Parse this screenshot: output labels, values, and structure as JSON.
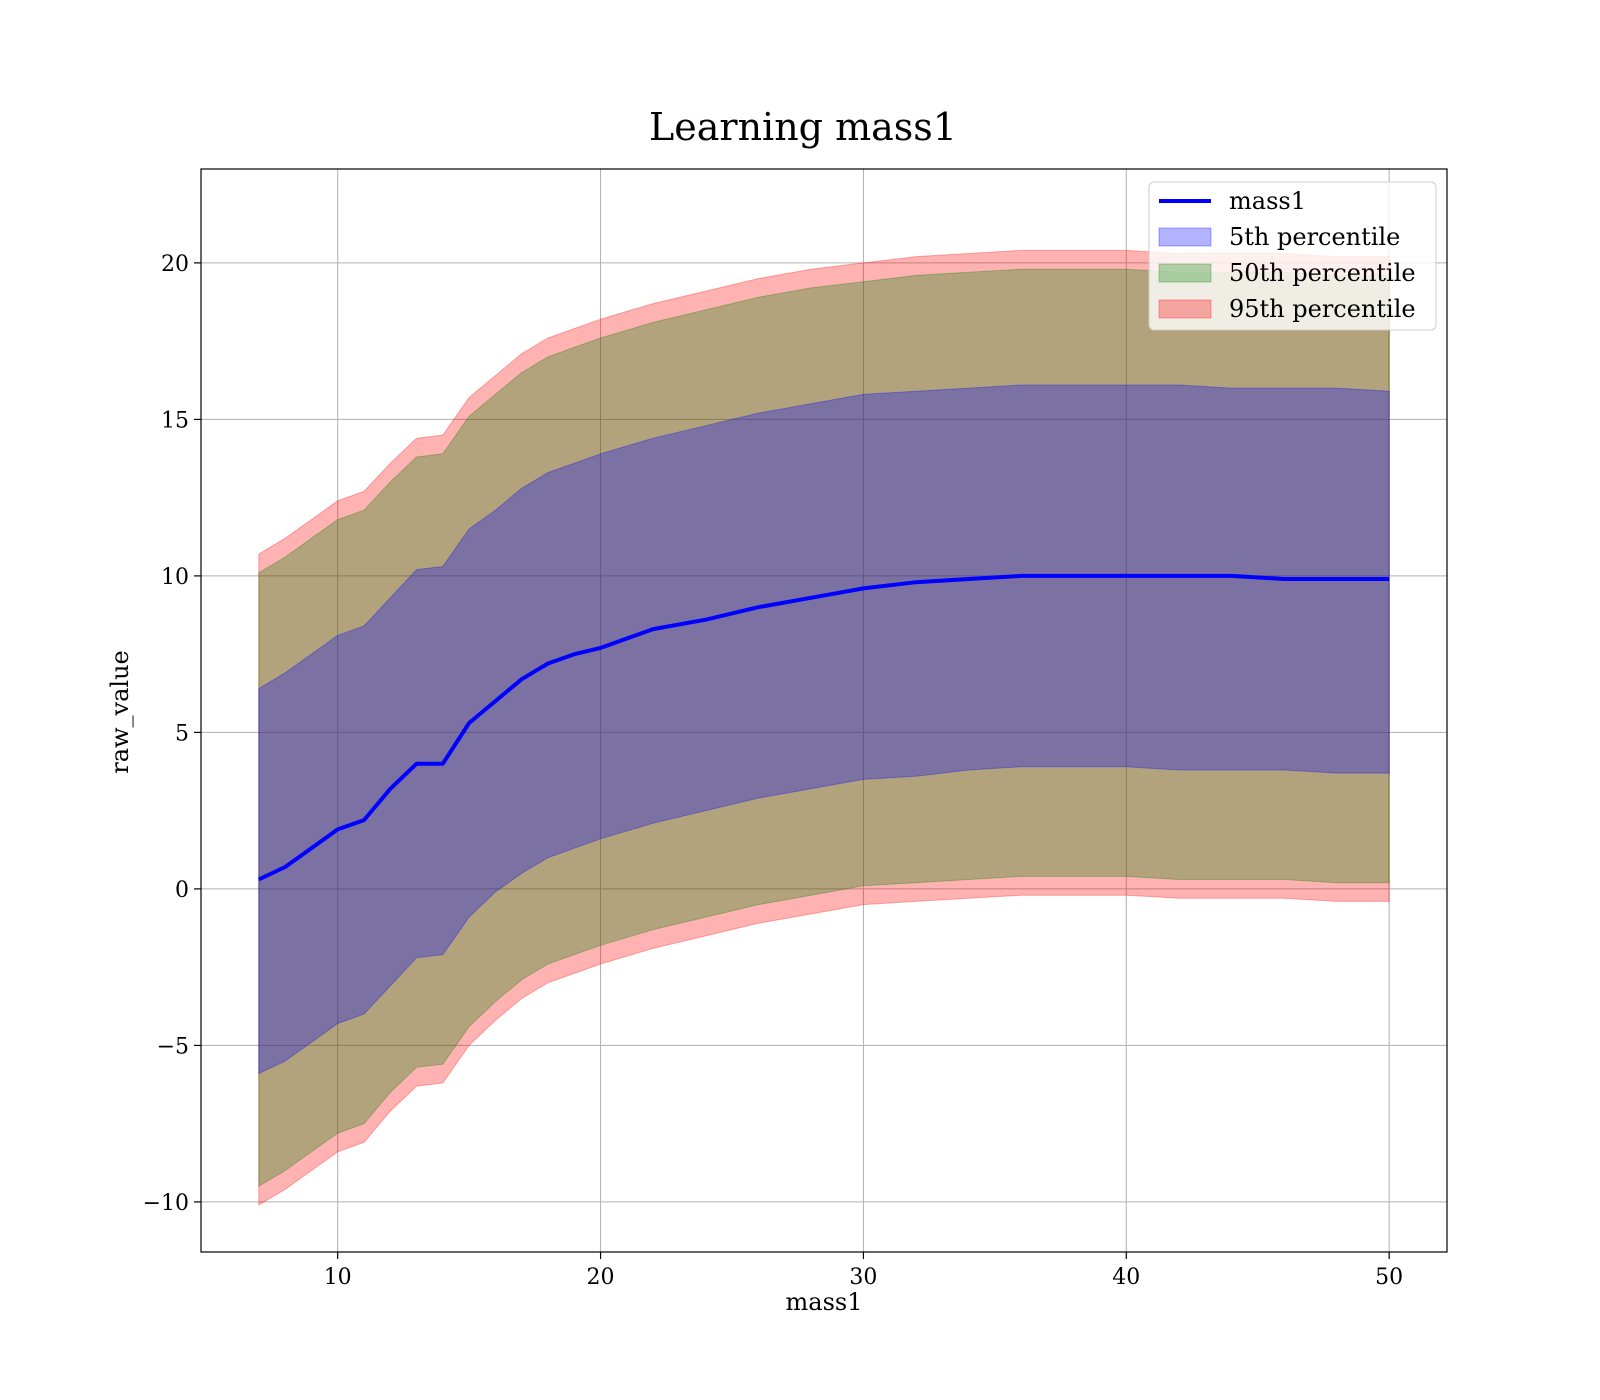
{
  "chart_data": {
    "type": "area",
    "title": "Learning mass1",
    "xlabel": "mass1",
    "ylabel": "raw_value",
    "xlim": [
      4.8,
      52.2
    ],
    "ylim": [
      -11.6,
      23.0
    ],
    "xticks": [
      10,
      20,
      30,
      40,
      50
    ],
    "yticks": [
      -10,
      -5,
      0,
      5,
      10,
      15,
      20
    ],
    "ytick_labels": [
      "−10",
      "−5",
      "0",
      "5",
      "10",
      "15",
      "20"
    ],
    "grid": true,
    "legend_position": "top-right",
    "legend": [
      {
        "label": "mass1",
        "kind": "line",
        "color": "#0000ff"
      },
      {
        "label": "5th percentile",
        "kind": "patch",
        "color": "#0000ff"
      },
      {
        "label": "50th percentile",
        "kind": "patch",
        "color": "#008000"
      },
      {
        "label": "95th percentile",
        "kind": "patch",
        "color": "#ff0000"
      }
    ],
    "x": [
      7,
      8,
      9,
      10,
      11,
      12,
      13,
      14,
      15,
      16,
      17,
      18,
      19,
      20,
      22,
      24,
      26,
      28,
      30,
      32,
      34,
      36,
      38,
      40,
      42,
      44,
      46,
      48,
      50
    ],
    "series": [
      {
        "name": "mass1",
        "values": [
          0.3,
          0.7,
          1.3,
          1.9,
          2.2,
          3.2,
          4.0,
          4.0,
          5.3,
          6.0,
          6.7,
          7.2,
          7.5,
          7.7,
          8.3,
          8.6,
          9.0,
          9.3,
          9.6,
          9.8,
          9.9,
          10.0,
          10.0,
          10.0,
          10.0,
          10.0,
          9.9,
          9.9,
          9.9
        ]
      },
      {
        "name": "5th percentile",
        "values": [
          -5.9,
          -5.5,
          -4.9,
          -4.3,
          -4.0,
          -3.1,
          -2.2,
          -2.1,
          -0.9,
          -0.1,
          0.5,
          1.0,
          1.3,
          1.6,
          2.1,
          2.5,
          2.9,
          3.2,
          3.5,
          3.6,
          3.8,
          3.9,
          3.9,
          3.9,
          3.8,
          3.8,
          3.8,
          3.7,
          3.7
        ]
      },
      {
        "name": "5th percentile",
        "values": [
          6.4,
          6.9,
          7.5,
          8.1,
          8.4,
          9.3,
          10.2,
          10.3,
          11.5,
          12.1,
          12.8,
          13.3,
          13.6,
          13.9,
          14.4,
          14.8,
          15.2,
          15.5,
          15.8,
          15.9,
          16.0,
          16.1,
          16.1,
          16.1,
          16.1,
          16.0,
          16.0,
          16.0,
          15.9
        ]
      },
      {
        "name": "50th percentile",
        "values": [
          -9.5,
          -9.0,
          -8.4,
          -7.8,
          -7.5,
          -6.5,
          -5.7,
          -5.6,
          -4.4,
          -3.6,
          -2.9,
          -2.4,
          -2.1,
          -1.8,
          -1.3,
          -0.9,
          -0.5,
          -0.2,
          0.1,
          0.2,
          0.3,
          0.4,
          0.4,
          0.4,
          0.3,
          0.3,
          0.3,
          0.2,
          0.2
        ]
      },
      {
        "name": "50th percentile",
        "values": [
          10.1,
          10.6,
          11.2,
          11.8,
          12.1,
          13.0,
          13.8,
          13.9,
          15.1,
          15.8,
          16.5,
          17.0,
          17.3,
          17.6,
          18.1,
          18.5,
          18.9,
          19.2,
          19.4,
          19.6,
          19.7,
          19.8,
          19.8,
          19.8,
          19.7,
          19.7,
          19.7,
          19.6,
          19.6
        ]
      },
      {
        "name": "95th percentile",
        "values": [
          -10.1,
          -9.6,
          -9.0,
          -8.4,
          -8.1,
          -7.1,
          -6.3,
          -6.2,
          -5.0,
          -4.2,
          -3.5,
          -3.0,
          -2.7,
          -2.4,
          -1.9,
          -1.5,
          -1.1,
          -0.8,
          -0.5,
          -0.4,
          -0.3,
          -0.2,
          -0.2,
          -0.2,
          -0.3,
          -0.3,
          -0.3,
          -0.4,
          -0.4
        ]
      },
      {
        "name": "95th percentile",
        "values": [
          10.7,
          11.2,
          11.8,
          12.4,
          12.7,
          13.6,
          14.4,
          14.5,
          15.7,
          16.4,
          17.1,
          17.6,
          17.9,
          18.2,
          18.7,
          19.1,
          19.5,
          19.8,
          20.0,
          20.2,
          20.3,
          20.4,
          20.4,
          20.4,
          20.3,
          20.3,
          20.3,
          20.2,
          20.2
        ]
      }
    ],
    "colors": {
      "line": "#0000ff",
      "band_5": "rgba(0,0,255,0.3)",
      "band_50": "rgba(0,128,0,0.3)",
      "band_95": "rgba(255,0,0,0.3)",
      "grid": "#b0b0b0"
    }
  }
}
